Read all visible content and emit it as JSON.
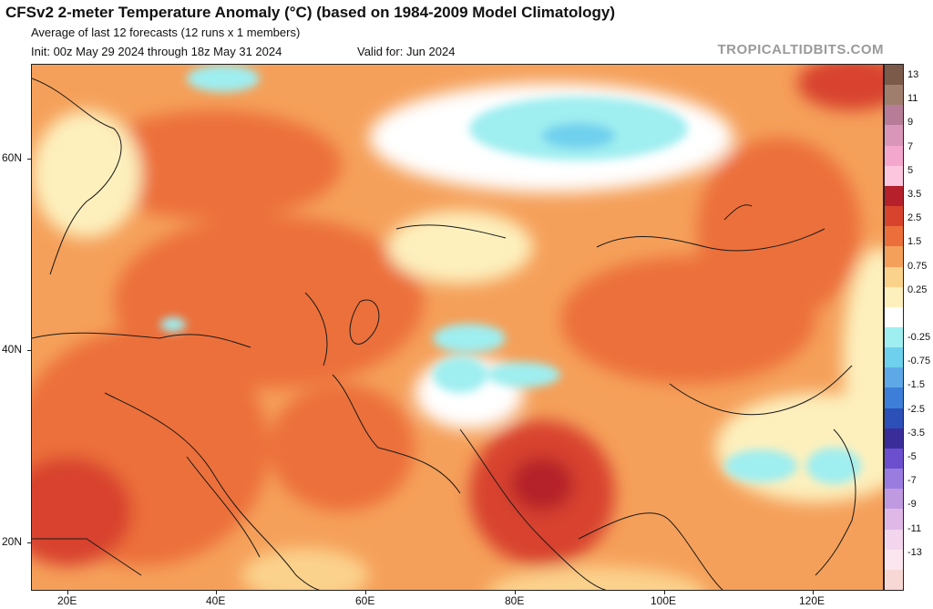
{
  "header": {
    "title": "CFSv2 2-meter Temperature Anomaly (°C) (based on 1984-2009 Model Climatology)",
    "subtitle": "Average of last 12 forecasts (12 runs x 1 members)",
    "init": "Init: 00z May 29 2024 through 18z May 31 2024",
    "valid": "Valid for: Jun 2024",
    "credit": "TROPICALTIDBITS.COM"
  },
  "map": {
    "lon_range": [
      15,
      130
    ],
    "lat_range": [
      15,
      70
    ],
    "lat_labels": [
      "60N",
      "40N",
      "20N"
    ],
    "lon_labels": [
      "20E",
      "40E",
      "60E",
      "80E",
      "100E",
      "120E"
    ]
  },
  "colorbar": {
    "labels": [
      "13",
      "11",
      "9",
      "7",
      "5",
      "3.5",
      "2.5",
      "1.5",
      "0.75",
      "0.25",
      "-0.25",
      "-0.75",
      "-1.5",
      "-2.5",
      "-3.5",
      "-5",
      "-7",
      "-9",
      "-11",
      "-13"
    ],
    "colors": [
      "#7b5a4a",
      "#a07e6e",
      "#b77c97",
      "#d996b8",
      "#f4a7cd",
      "#fbc6de",
      "#b5202a",
      "#d8432e",
      "#ec6f3b",
      "#f5a05a",
      "#fbd28c",
      "#fdf0bd",
      "#ffffff",
      "#9feef0",
      "#6fd0ee",
      "#5ea8e8",
      "#3d7fd8",
      "#2c4fb8",
      "#3a2d9a",
      "#6b4fcf",
      "#9a7be0",
      "#c09ae0",
      "#e0b8e8",
      "#f3d6ee",
      "#fbe6ef",
      "#f7d8d4"
    ]
  }
}
